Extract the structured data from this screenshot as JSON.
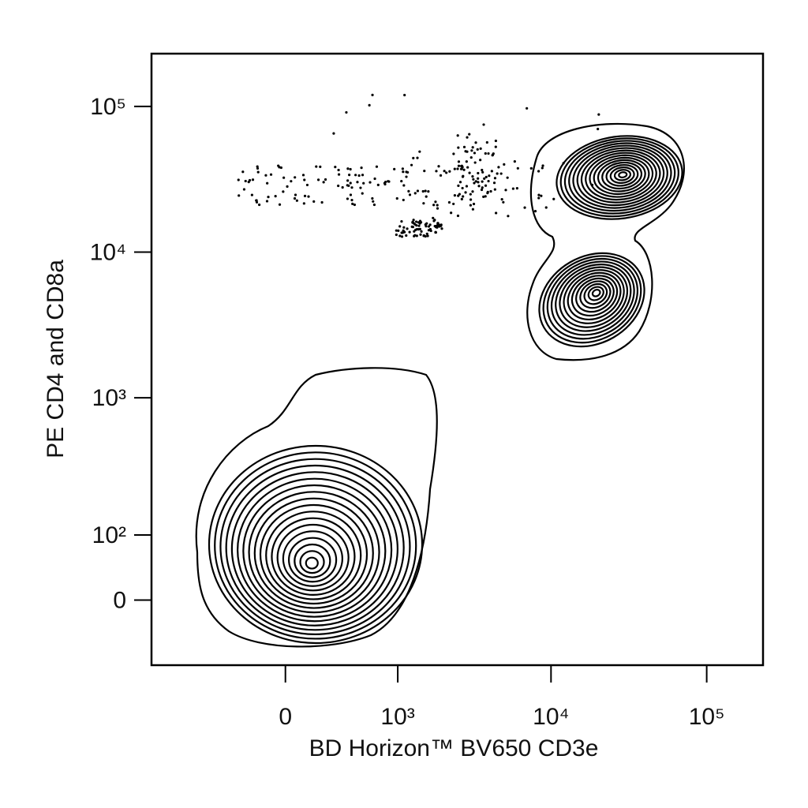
{
  "chart_data": {
    "type": "contour",
    "x_label": "BD Horizon™ BV650 CD3e",
    "y_label": "PE CD4 and CD8a",
    "scale": "biexponential",
    "xlim": [
      -1400,
      230000
    ],
    "ylim": [
      -100,
      230000
    ],
    "xticks": [
      0,
      {
        "value": 1000,
        "label": "10³"
      },
      {
        "value": 10000,
        "label": "10⁴"
      },
      {
        "value": 100000,
        "label": "10⁵"
      }
    ],
    "yticks": [
      0,
      {
        "value": 100,
        "label": "10²"
      },
      {
        "value": 1000,
        "label": "10³"
      },
      {
        "value": 10000,
        "label": "10⁴"
      },
      {
        "value": 100000,
        "label": "10⁵"
      }
    ],
    "color": "#000000"
  }
}
